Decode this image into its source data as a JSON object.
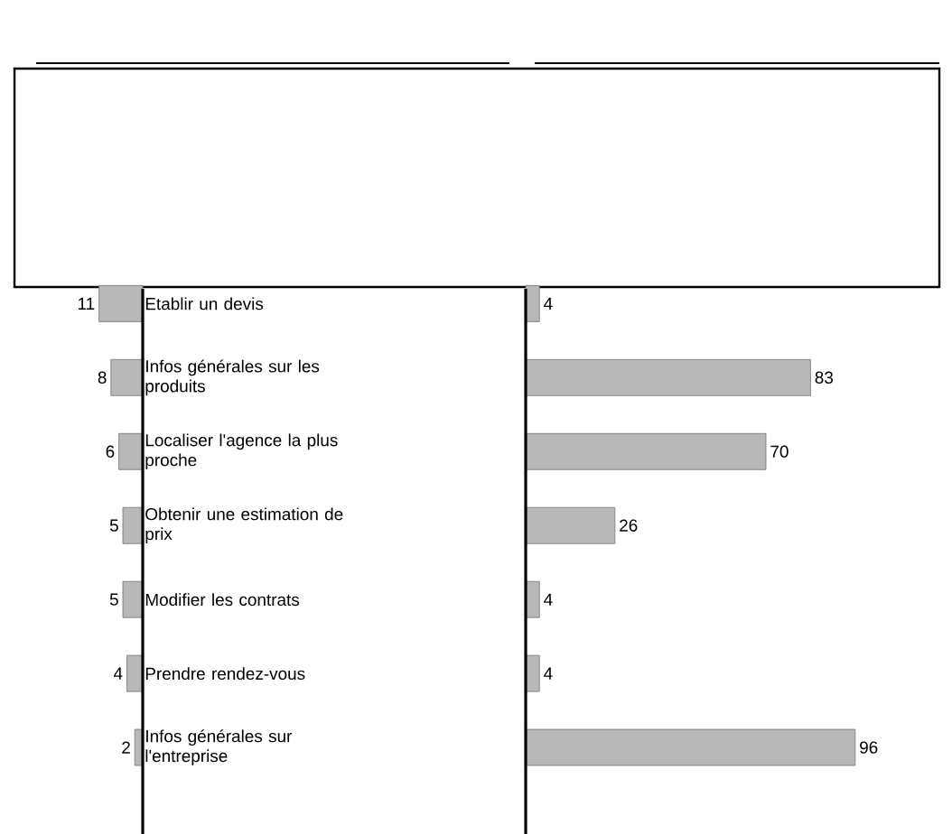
{
  "chart_data": [
    {
      "type": "bar",
      "orientation": "horizontal",
      "categories": [
        "Etablir un devis",
        "Infos générales sur les produits",
        "Localiser l'agence la plus proche",
        "Obtenir une estimation de prix",
        "Modifier les contrats",
        "Prendre rendez-vous",
        "Infos générales sur l'entreprise"
      ],
      "values": [
        11,
        8,
        6,
        5,
        5,
        4,
        2
      ],
      "color": "#b8b8b8",
      "data_labels": true,
      "tick_labels": "y"
    },
    {
      "type": "bar",
      "orientation": "horizontal",
      "categories": [
        null,
        null,
        null,
        null,
        null,
        null,
        null
      ],
      "values": [
        4,
        83,
        70,
        26,
        4,
        4,
        96
      ],
      "color": "#b8b8b8",
      "data_labels": true
    }
  ]
}
